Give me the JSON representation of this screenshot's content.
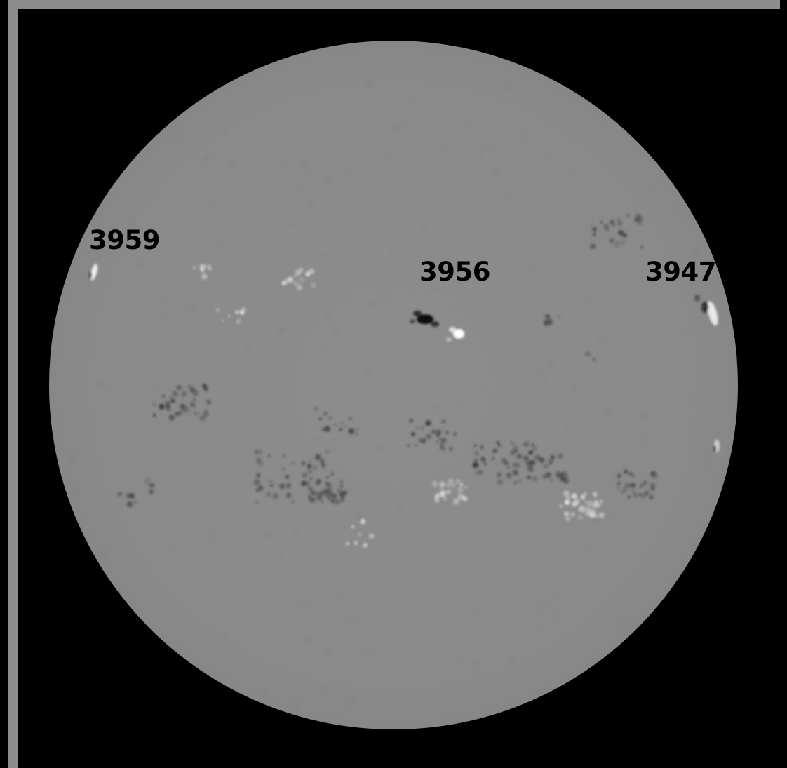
{
  "image": {
    "description_type": "solar magnetogram",
    "background_color": "#000000",
    "frame_color": "#8c8c8c",
    "disk_color": "#8a8a8a"
  },
  "labels": {
    "region_3959": "3959",
    "region_3956": "3956",
    "region_3947": "3947"
  }
}
